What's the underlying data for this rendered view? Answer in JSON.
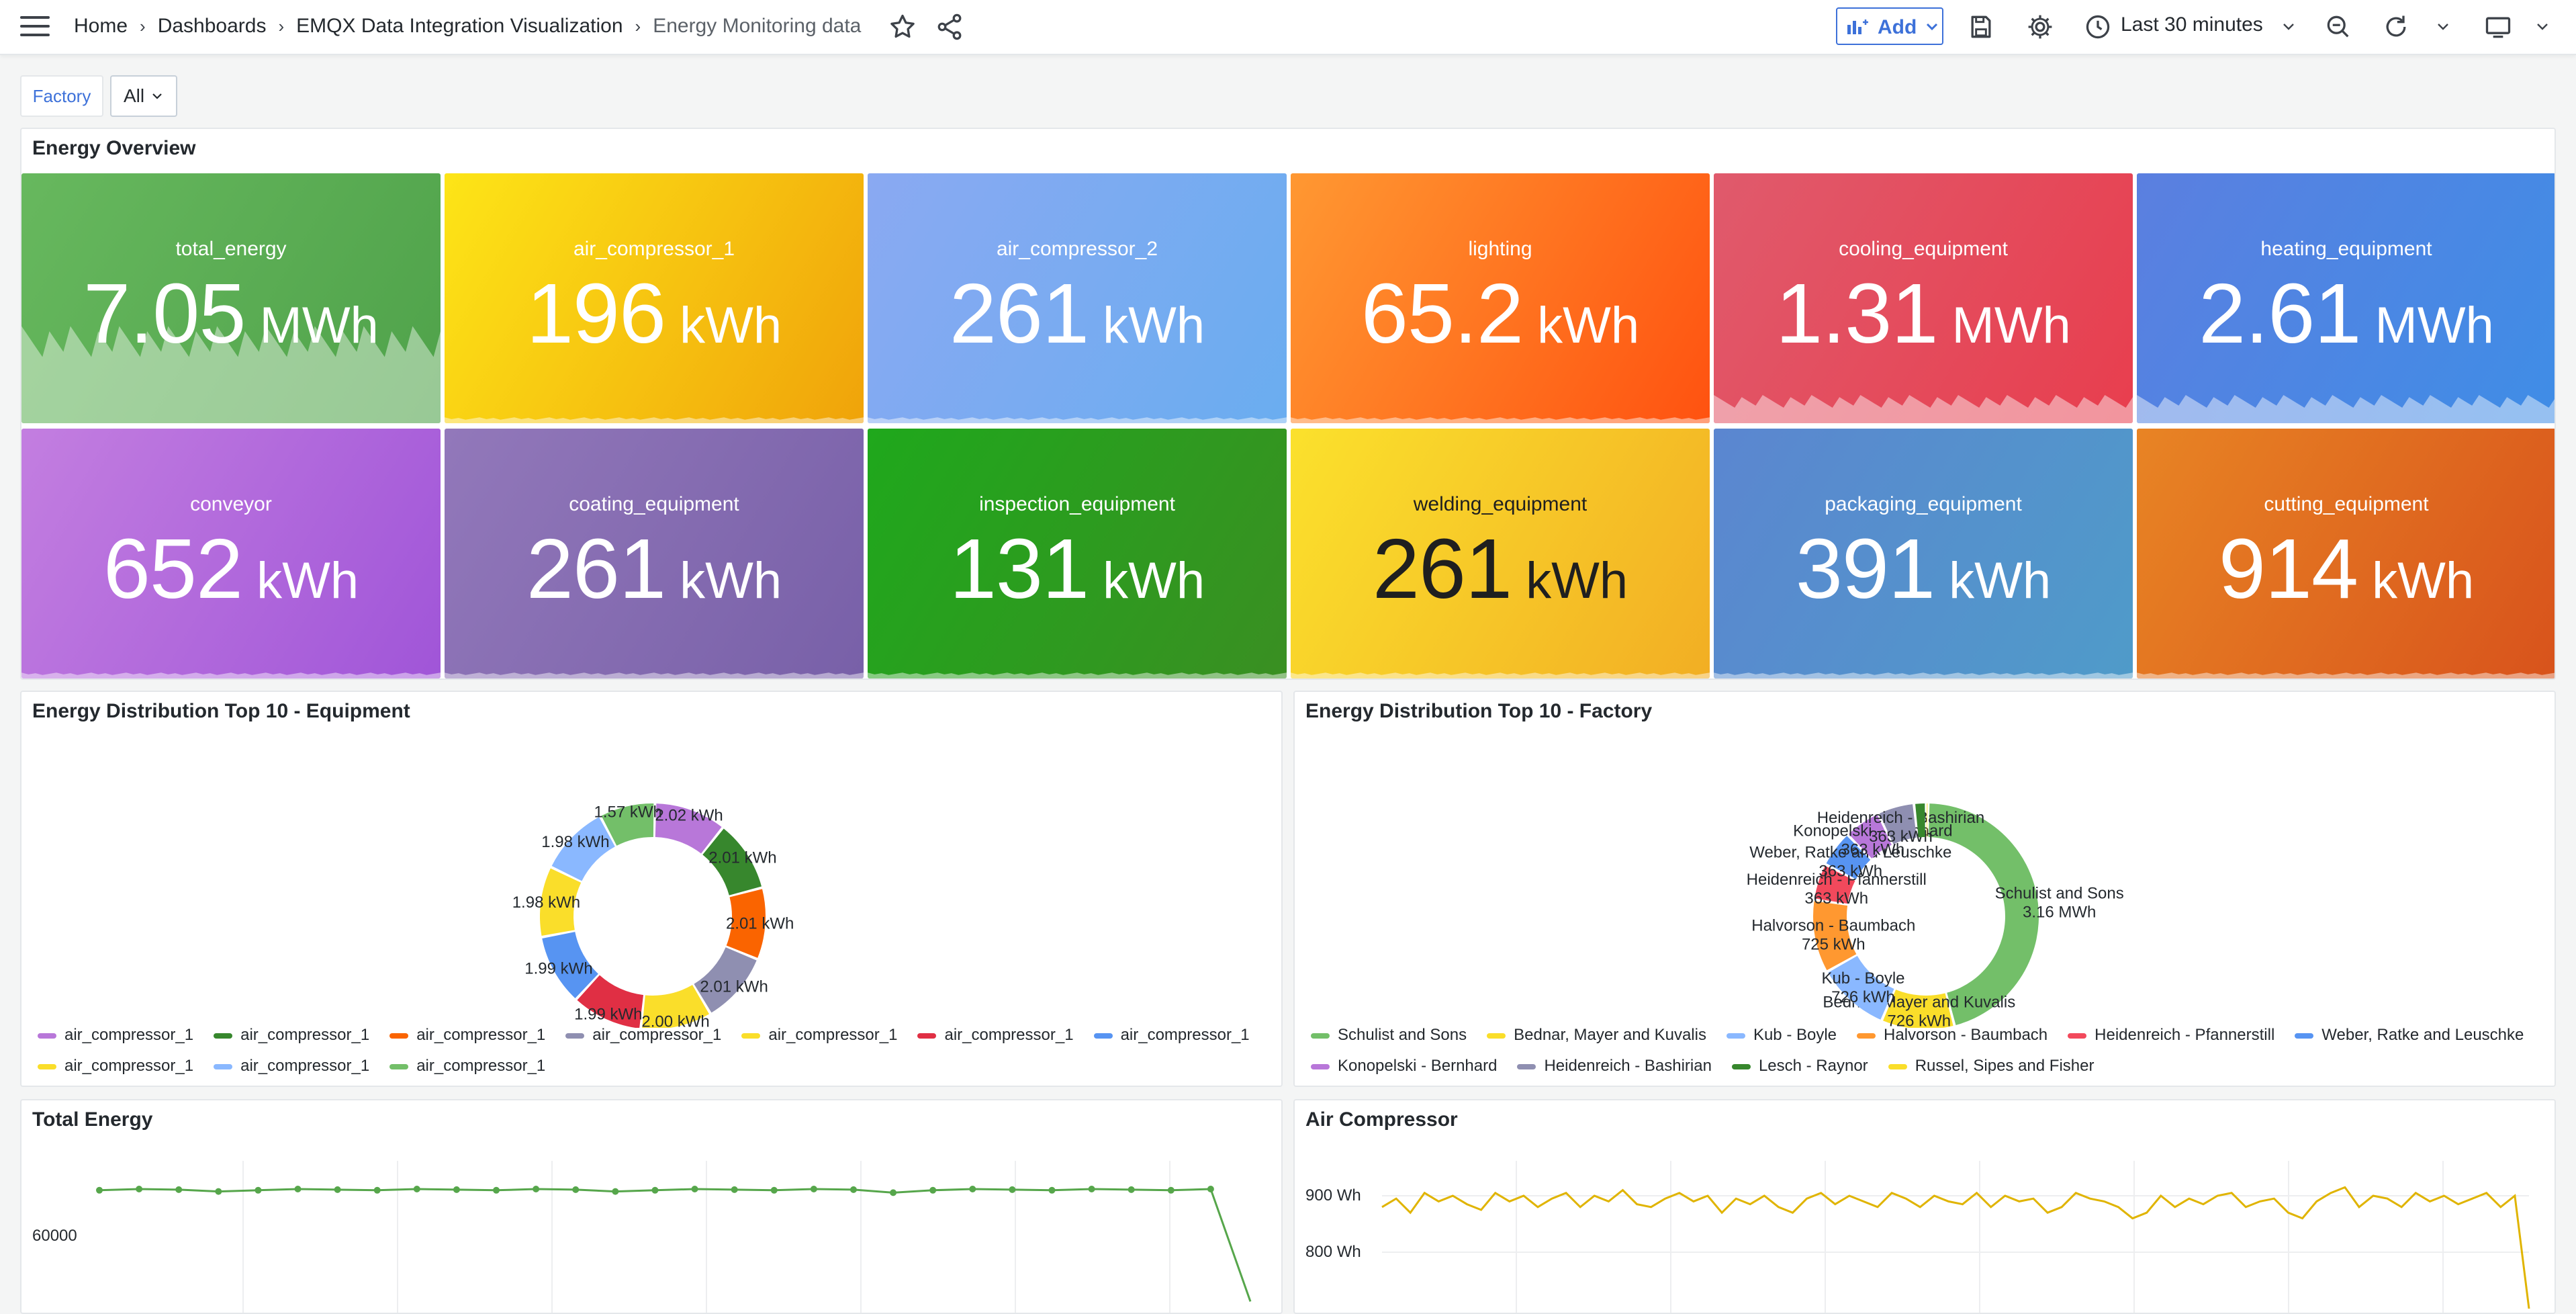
{
  "breadcrumb": {
    "home": "Home",
    "dashboards": "Dashboards",
    "folder": "EMQX Data Integration Visualization",
    "current": "Energy Monitoring data"
  },
  "toolbar": {
    "add_label": "Add",
    "time_range": "Last 30 minutes"
  },
  "variables": {
    "factory_label": "Factory",
    "factory_value": "All"
  },
  "overview": {
    "title": "Energy Overview",
    "stats": [
      {
        "name": "total_energy",
        "value": "7.05",
        "unit": "MWh",
        "c1": "#67b85e",
        "c2": "#4fa24a",
        "spark": "fill"
      },
      {
        "name": "air_compressor_1",
        "value": "196",
        "unit": "kWh",
        "c1": "#fde517",
        "c2": "#f0a30a",
        "spark": "line"
      },
      {
        "name": "air_compressor_2",
        "value": "261",
        "unit": "kWh",
        "c1": "#8aa9f2",
        "c2": "#6aadf0",
        "spark": "line"
      },
      {
        "name": "lighting",
        "value": "65.2",
        "unit": "kWh",
        "c1": "#ff9832",
        "c2": "#ff5210",
        "spark": "line"
      },
      {
        "name": "cooling_equipment",
        "value": "1.31",
        "unit": "MWh",
        "c1": "#e05a6c",
        "c2": "#e83e4e",
        "spark": "fill"
      },
      {
        "name": "heating_equipment",
        "value": "2.61",
        "unit": "MWh",
        "c1": "#5b7fe0",
        "c2": "#3f8de6",
        "spark": "fill"
      },
      {
        "name": "conveyor",
        "value": "652",
        "unit": "kWh",
        "c1": "#c37ee0",
        "c2": "#a055d8",
        "spark": "line"
      },
      {
        "name": "coating_equipment",
        "value": "261",
        "unit": "kWh",
        "c1": "#9278ba",
        "c2": "#7860a8",
        "spark": "line"
      },
      {
        "name": "inspection_equipment",
        "value": "131",
        "unit": "kWh",
        "c1": "#1fa81c",
        "c2": "#3a8f22",
        "spark": "line"
      },
      {
        "name": "welding_equipment",
        "value": "261",
        "unit": "kWh",
        "c1": "#fbe12c",
        "c2": "#f2ae24",
        "spark": "line",
        "dark": true
      },
      {
        "name": "packaging_equipment",
        "value": "391",
        "unit": "kWh",
        "c1": "#5b86d0",
        "c2": "#4f9bc9",
        "spark": "line"
      },
      {
        "name": "cutting_equipment",
        "value": "914",
        "unit": "kWh",
        "c1": "#e88424",
        "c2": "#d8531c",
        "spark": "line"
      }
    ]
  },
  "equipment_panel": {
    "title": "Energy Distribution Top 10 - Equipment",
    "slices": [
      {
        "label": "2.02 kWh",
        "color": "#b877d9",
        "value": 2.02
      },
      {
        "label": "2.01 kWh",
        "color": "#37872d",
        "value": 2.01
      },
      {
        "label": "2.01 kWh",
        "color": "#fa6400",
        "value": 2.01
      },
      {
        "label": "2.01 kWh",
        "color": "#8f8fb1",
        "value": 2.01
      },
      {
        "label": "2.00 kWh",
        "color": "#fade2a",
        "value": 2.0
      },
      {
        "label": "1.99 kWh",
        "color": "#e02f44",
        "value": 1.99
      },
      {
        "label": "1.99 kWh",
        "color": "#5794f2",
        "value": 1.99
      },
      {
        "label": "1.98 kWh",
        "color": "#fade2a",
        "value": 1.98
      },
      {
        "label": "1.98 kWh",
        "color": "#8ab8ff",
        "value": 1.98
      },
      {
        "label": "1.57 kWh",
        "color": "#73bf69",
        "value": 1.57
      }
    ],
    "legend": [
      {
        "label": "air_compressor_1",
        "color": "#b877d9"
      },
      {
        "label": "air_compressor_1",
        "color": "#37872d"
      },
      {
        "label": "air_compressor_1",
        "color": "#fa6400"
      },
      {
        "label": "air_compressor_1",
        "color": "#8f8fb1"
      },
      {
        "label": "air_compressor_1",
        "color": "#fade2a"
      },
      {
        "label": "air_compressor_1",
        "color": "#e02f44"
      },
      {
        "label": "air_compressor_1",
        "color": "#5794f2"
      },
      {
        "label": "air_compressor_1",
        "color": "#fade2a"
      },
      {
        "label": "air_compressor_1",
        "color": "#8ab8ff"
      },
      {
        "label": "air_compressor_1",
        "color": "#73bf69"
      }
    ]
  },
  "factory_panel": {
    "title": "Energy Distribution Top 10 - Factory",
    "slices": [
      {
        "name": "Schulist and Sons",
        "label": "3.16 MWh",
        "color": "#73bf69",
        "value": 3.16
      },
      {
        "name": "Bednar, Mayer and Kuvalis",
        "label": "726 kWh",
        "color": "#fade2a",
        "value": 0.726
      },
      {
        "name": "Kub - Boyle",
        "label": "726 kWh",
        "color": "#8ab8ff",
        "value": 0.726
      },
      {
        "name": "Halvorson - Baumbach",
        "label": "725 kWh",
        "color": "#ff9830",
        "value": 0.725
      },
      {
        "name": "Heidenreich - Pfannerstill",
        "label": "363 kWh",
        "color": "#f2495c",
        "value": 0.363
      },
      {
        "name": "Weber, Ratke and Leuschke",
        "label": "363 kWh",
        "color": "#5794f2",
        "value": 0.363
      },
      {
        "name": "Konopelski - Bernhard",
        "label": "363 kWh",
        "color": "#b877d9",
        "value": 0.363
      },
      {
        "name": "Heidenreich - Bashirian",
        "label": "363 kWh",
        "color": "#8f8fb1",
        "value": 0.363
      },
      {
        "name": "Lesch - Raynor",
        "label": "",
        "color": "#37872d",
        "value": 0.12
      },
      {
        "name": "Russel, Sipes and Fisher",
        "label": "",
        "color": "#fade2a",
        "value": 0.02
      }
    ]
  },
  "total_energy_panel": {
    "title": "Total Energy",
    "y_tick": "60000"
  },
  "air_compressor_panel": {
    "title": "Air Compressor",
    "y_ticks": [
      "900 Wh",
      "800 Wh"
    ]
  },
  "chart_data": [
    {
      "type": "pie",
      "title": "Energy Distribution Top 10 - Equipment",
      "categories": [
        "air_compressor_1",
        "air_compressor_1",
        "air_compressor_1",
        "air_compressor_1",
        "air_compressor_1",
        "air_compressor_1",
        "air_compressor_1",
        "air_compressor_1",
        "air_compressor_1",
        "air_compressor_1"
      ],
      "values": [
        2.02,
        2.01,
        2.01,
        2.01,
        2.0,
        1.99,
        1.99,
        1.98,
        1.98,
        1.57
      ],
      "unit": "kWh"
    },
    {
      "type": "pie",
      "title": "Energy Distribution Top 10 - Factory",
      "categories": [
        "Schulist and Sons",
        "Bednar, Mayer and Kuvalis",
        "Kub - Boyle",
        "Halvorson - Baumbach",
        "Heidenreich - Pfannerstill",
        "Weber, Ratke and Leuschke",
        "Konopelski - Bernhard",
        "Heidenreich - Bashirian",
        "Lesch - Raynor",
        "Russel, Sipes and Fisher"
      ],
      "values": [
        3160,
        726,
        726,
        725,
        363,
        363,
        363,
        363,
        120,
        20
      ],
      "unit": "kWh"
    },
    {
      "type": "line",
      "title": "Total Energy",
      "series": [
        {
          "values": [
            63200,
            63300,
            63250,
            63100,
            63200,
            63300,
            63250,
            63200,
            63300,
            63250,
            63200,
            63300,
            63250,
            63100,
            63200,
            63300,
            63250,
            63200,
            63300,
            63250,
            63000,
            63200,
            63300,
            63250,
            63200,
            63300,
            63250,
            63200,
            63300,
            54000
          ]
        }
      ],
      "yticks": [
        60000
      ]
    },
    {
      "type": "line",
      "title": "Air Compressor",
      "series": [
        {
          "values": [
            880,
            895,
            870,
            905,
            890,
            900,
            885,
            875,
            905,
            890,
            900,
            880,
            895,
            905,
            880,
            900,
            890,
            910,
            885,
            880,
            895,
            905,
            890,
            900,
            870,
            895,
            885,
            900,
            880,
            870,
            895,
            905,
            885,
            900,
            890,
            880,
            905,
            895,
            880,
            900,
            890,
            885,
            905,
            880,
            900,
            890,
            895,
            870,
            880,
            905,
            895,
            890,
            880,
            860,
            870,
            900,
            880,
            895,
            885,
            900,
            905,
            880,
            890,
            895,
            870,
            860,
            890,
            905,
            915,
            880,
            900,
            895,
            880,
            905,
            890,
            900,
            885,
            895,
            905,
            880,
            900,
            700
          ]
        }
      ],
      "yticks": [
        900,
        800
      ],
      "unit": "Wh"
    }
  ]
}
